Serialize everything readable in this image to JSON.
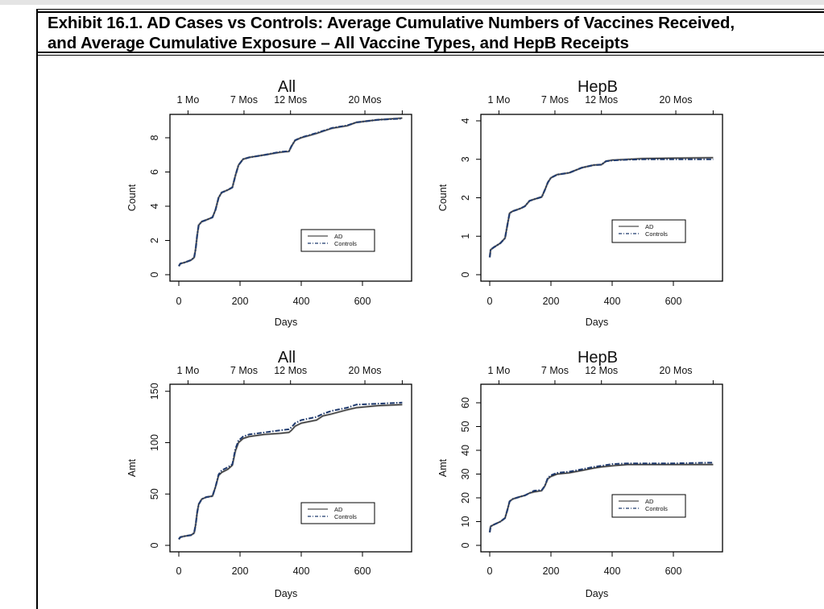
{
  "exhibit": {
    "title_line1": "Exhibit 16.1. AD Cases vs Controls: Average Cumulative Numbers of Vaccines Received,",
    "title_line2": "and Average Cumulative Exposure – All Vaccine Types, and HepB Receipts"
  },
  "colors": {
    "ad": "#222222",
    "ad_shadow": "#a8a8a8",
    "controls": "#1f3a6e",
    "axis": "#000000"
  },
  "chart_data": [
    {
      "id": "all-count",
      "type": "line",
      "title": "All",
      "xlabel": "Days",
      "ylabel": "Count",
      "xlim": [
        0,
        730
      ],
      "ylim": [
        0,
        9.2
      ],
      "x_ticks": [
        0,
        200,
        400,
        600
      ],
      "x_tick_labels": [
        "0",
        "200",
        "400",
        "600"
      ],
      "y_ticks": [
        0,
        2,
        4,
        6,
        8
      ],
      "y_tick_labels": [
        "0",
        "2",
        "4",
        "6",
        "8"
      ],
      "top_ticks": [
        30,
        213,
        365,
        608,
        730
      ],
      "top_tick_labels": [
        "1 Mo",
        "7 Mos",
        "12 Mos",
        "20 Mos",
        ""
      ],
      "legend": [
        "AD",
        "Controls"
      ],
      "legend_position": "bottom-right",
      "series": [
        {
          "name": "AD",
          "style": "solid",
          "x": [
            0,
            5,
            20,
            40,
            50,
            55,
            60,
            65,
            75,
            90,
            110,
            120,
            130,
            140,
            160,
            175,
            185,
            195,
            210,
            230,
            280,
            330,
            360,
            368,
            380,
            400,
            450,
            500,
            550,
            580,
            650,
            730
          ],
          "y": [
            0.5,
            0.65,
            0.72,
            0.85,
            1.0,
            1.5,
            2.3,
            2.9,
            3.1,
            3.2,
            3.35,
            3.8,
            4.5,
            4.8,
            4.95,
            5.1,
            5.8,
            6.4,
            6.75,
            6.85,
            7.0,
            7.15,
            7.2,
            7.5,
            7.85,
            8.0,
            8.25,
            8.55,
            8.7,
            8.9,
            9.05,
            9.15
          ]
        },
        {
          "name": "Controls",
          "style": "dashdot",
          "x": [
            0,
            5,
            20,
            40,
            50,
            55,
            60,
            65,
            75,
            90,
            110,
            120,
            130,
            140,
            160,
            175,
            185,
            195,
            210,
            230,
            280,
            330,
            360,
            368,
            380,
            400,
            450,
            500,
            550,
            580,
            650,
            730
          ],
          "y": [
            0.5,
            0.65,
            0.72,
            0.85,
            1.0,
            1.5,
            2.3,
            2.9,
            3.1,
            3.2,
            3.35,
            3.8,
            4.5,
            4.8,
            4.95,
            5.1,
            5.8,
            6.4,
            6.75,
            6.85,
            7.0,
            7.17,
            7.22,
            7.5,
            7.85,
            8.02,
            8.28,
            8.57,
            8.72,
            8.9,
            9.05,
            9.12
          ]
        }
      ]
    },
    {
      "id": "hepb-count",
      "type": "line",
      "title": "HepB",
      "xlabel": "Days",
      "ylabel": "Count",
      "xlim": [
        0,
        730
      ],
      "ylim": [
        0,
        4.2
      ],
      "x_ticks": [
        0,
        200,
        400,
        600
      ],
      "x_tick_labels": [
        "0",
        "200",
        "400",
        "600"
      ],
      "y_ticks": [
        0,
        1,
        2,
        3,
        4
      ],
      "y_tick_labels": [
        "0",
        "1",
        "2",
        "3",
        "4"
      ],
      "top_ticks": [
        30,
        213,
        365,
        608,
        730
      ],
      "top_tick_labels": [
        "1 Mo",
        "7 Mos",
        "12 Mos",
        "20 Mos",
        ""
      ],
      "legend": [
        "AD",
        "Controls"
      ],
      "legend_position": "right",
      "series": [
        {
          "name": "AD",
          "style": "solid",
          "x": [
            0,
            3,
            15,
            35,
            50,
            58,
            65,
            75,
            100,
            115,
            130,
            145,
            170,
            180,
            190,
            200,
            220,
            260,
            300,
            340,
            365,
            380,
            400,
            450,
            500,
            600,
            730
          ],
          "y": [
            0.45,
            0.65,
            0.72,
            0.82,
            0.95,
            1.3,
            1.6,
            1.65,
            1.72,
            1.78,
            1.92,
            1.96,
            2.02,
            2.2,
            2.4,
            2.52,
            2.6,
            2.65,
            2.78,
            2.85,
            2.86,
            2.95,
            2.98,
            3.0,
            3.02,
            3.03,
            3.04
          ]
        },
        {
          "name": "Controls",
          "style": "dashdot",
          "x": [
            0,
            3,
            15,
            35,
            50,
            58,
            65,
            75,
            100,
            115,
            130,
            145,
            170,
            180,
            190,
            200,
            220,
            260,
            300,
            340,
            365,
            380,
            400,
            450,
            500,
            600,
            730
          ],
          "y": [
            0.45,
            0.65,
            0.72,
            0.82,
            0.95,
            1.3,
            1.6,
            1.65,
            1.72,
            1.78,
            1.92,
            1.96,
            2.02,
            2.2,
            2.4,
            2.52,
            2.6,
            2.65,
            2.78,
            2.85,
            2.86,
            2.95,
            2.97,
            2.99,
            3.0,
            3.0,
            3.0
          ]
        }
      ]
    },
    {
      "id": "all-amt",
      "type": "line",
      "title": "All",
      "xlabel": "Days",
      "ylabel": "Amt",
      "xlim": [
        0,
        730
      ],
      "ylim": [
        0,
        155
      ],
      "x_ticks": [
        0,
        200,
        400,
        600
      ],
      "x_tick_labels": [
        "0",
        "200",
        "400",
        "600"
      ],
      "y_ticks": [
        0,
        50,
        100,
        150
      ],
      "y_tick_labels": [
        "0",
        "50",
        "100",
        "150"
      ],
      "top_ticks": [
        30,
        213,
        365,
        608,
        730
      ],
      "top_tick_labels": [
        "1 Mo",
        "7 Mos",
        "12 Mos",
        "20 Mos",
        ""
      ],
      "legend": [
        "AD",
        "Controls"
      ],
      "legend_position": "bottom-right",
      "series": [
        {
          "name": "AD",
          "style": "solid",
          "x": [
            0,
            5,
            20,
            40,
            50,
            55,
            60,
            65,
            75,
            90,
            110,
            120,
            130,
            140,
            160,
            175,
            185,
            195,
            210,
            230,
            280,
            330,
            360,
            368,
            380,
            400,
            450,
            470,
            500,
            550,
            580,
            650,
            730
          ],
          "y": [
            6,
            8,
            9,
            10,
            12,
            20,
            32,
            40,
            45,
            47,
            48,
            57,
            68,
            71,
            74,
            78,
            92,
            100,
            104,
            106,
            108,
            109,
            110,
            112,
            116,
            119,
            122,
            126,
            128,
            132,
            134,
            136,
            137
          ]
        },
        {
          "name": "Controls",
          "style": "dashdot",
          "x": [
            0,
            5,
            20,
            40,
            50,
            55,
            60,
            65,
            75,
            90,
            110,
            120,
            130,
            140,
            160,
            175,
            185,
            195,
            210,
            230,
            280,
            330,
            360,
            368,
            380,
            400,
            450,
            470,
            500,
            550,
            580,
            650,
            730
          ],
          "y": [
            6,
            8,
            9,
            10,
            12,
            20,
            32,
            40,
            45,
            47,
            48,
            57,
            69,
            73,
            76,
            79,
            94,
            102,
            106,
            108,
            110,
            112,
            113,
            115,
            119,
            122,
            125,
            128,
            131,
            134,
            137,
            138,
            139
          ]
        }
      ]
    },
    {
      "id": "hepb-amt",
      "type": "line",
      "title": "HepB",
      "xlabel": "Days",
      "ylabel": "Amt",
      "xlim": [
        0,
        730
      ],
      "ylim": [
        0,
        67
      ],
      "x_ticks": [
        0,
        200,
        400,
        600
      ],
      "x_tick_labels": [
        "0",
        "200",
        "400",
        "600"
      ],
      "y_ticks": [
        0,
        10,
        20,
        30,
        40,
        50,
        60
      ],
      "y_tick_labels": [
        "0",
        "10",
        "20",
        "30",
        "40",
        "50",
        "60"
      ],
      "top_ticks": [
        30,
        213,
        365,
        608,
        730
      ],
      "top_tick_labels": [
        "1 Mo",
        "7 Mos",
        "12 Mos",
        "20 Mos",
        ""
      ],
      "legend": [
        "AD",
        "Controls"
      ],
      "legend_position": "right",
      "series": [
        {
          "name": "AD",
          "style": "solid",
          "x": [
            0,
            3,
            15,
            35,
            50,
            58,
            65,
            75,
            100,
            115,
            130,
            145,
            170,
            180,
            190,
            200,
            220,
            260,
            300,
            340,
            365,
            400,
            450,
            500,
            600,
            730
          ],
          "y": [
            5.5,
            8,
            8.8,
            10,
            11.5,
            15,
            18.5,
            19.5,
            20.5,
            21,
            22,
            22.5,
            23,
            25,
            28,
            29,
            30,
            30.5,
            31.5,
            32.5,
            33,
            33.5,
            34,
            34,
            34,
            34
          ]
        },
        {
          "name": "Controls",
          "style": "dashdot",
          "x": [
            0,
            3,
            15,
            35,
            50,
            58,
            65,
            75,
            100,
            115,
            130,
            145,
            170,
            180,
            190,
            200,
            220,
            260,
            300,
            340,
            365,
            400,
            450,
            500,
            600,
            730
          ],
          "y": [
            5.5,
            8,
            8.8,
            10,
            11.5,
            15,
            18.5,
            19.5,
            20.5,
            21,
            22,
            23,
            23.3,
            25,
            28.5,
            29.5,
            30.5,
            31,
            32,
            33,
            33.5,
            34.2,
            34.5,
            34.5,
            34.5,
            34.8
          ]
        }
      ]
    }
  ]
}
